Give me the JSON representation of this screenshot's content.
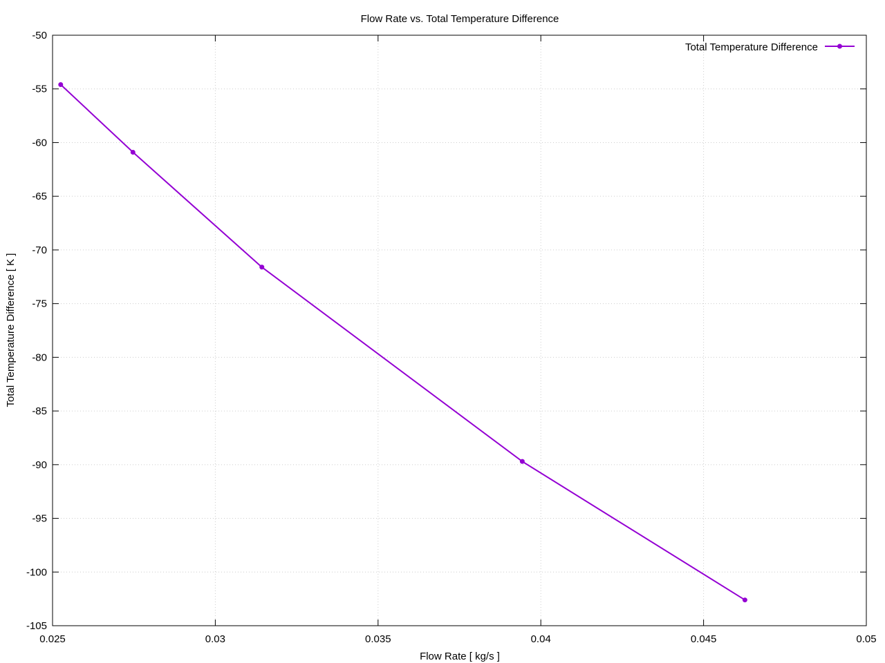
{
  "chart_data": {
    "type": "line",
    "title": "Flow Rate vs. Total Temperature Difference",
    "xlabel": "Flow Rate [ kg/s ]",
    "ylabel": "Total Temperature Difference [ K ]",
    "xlim": [
      0.025,
      0.05
    ],
    "ylim": [
      -105,
      -50
    ],
    "xticks": [
      "0.025",
      "0.03",
      "0.035",
      "0.04",
      "0.045",
      "0.05"
    ],
    "yticks": [
      "-50",
      "-55",
      "-60",
      "-65",
      "-70",
      "-75",
      "-80",
      "-85",
      "-90",
      "-95",
      "-100",
      "-105"
    ],
    "grid": true,
    "legend_position": "top-right",
    "series": [
      {
        "name": "Total Temperature Difference",
        "color": "#9400d3",
        "marker": "circle",
        "x": [
          0.02525,
          0.02747,
          0.03143,
          0.03943,
          0.04627
        ],
        "y": [
          -54.6,
          -60.9,
          -71.6,
          -89.7,
          -102.6
        ]
      }
    ]
  }
}
